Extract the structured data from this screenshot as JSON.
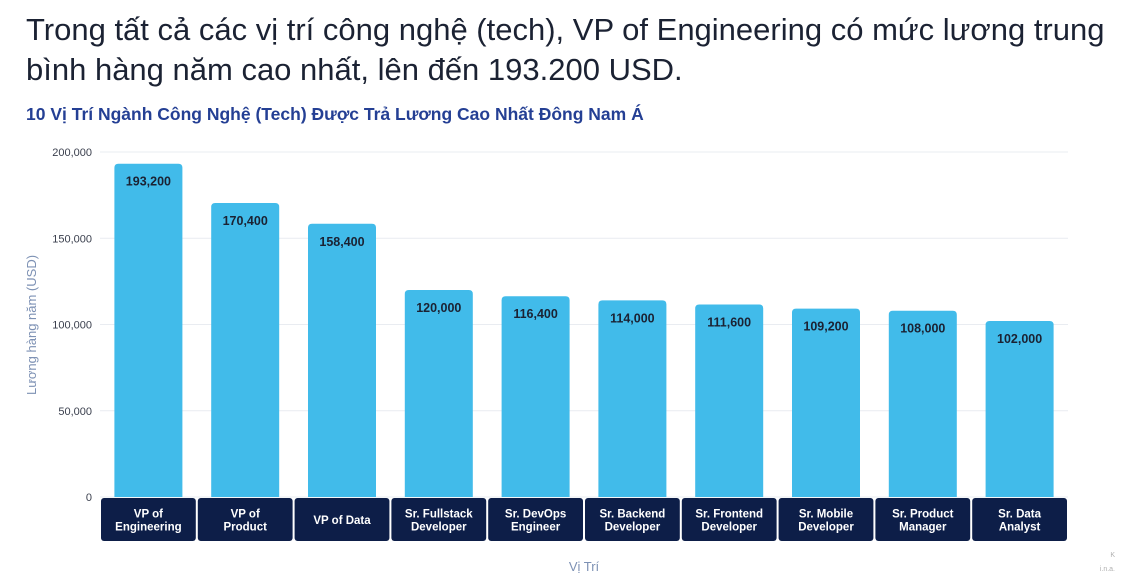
{
  "headline": "Trong tất cả các vị trí công nghệ (tech), VP of Engineering có mức lương trung bình hàng năm cao nhất, lên đến 193.200 USD.",
  "chart_data": {
    "type": "bar",
    "title": "10 Vị Trí Ngành Công Nghệ (Tech) Được Trả Lương Cao Nhất Đông Nam Á",
    "xlabel": "Vị Trí",
    "ylabel": "Lương hàng năm  (USD)",
    "ylim": [
      0,
      200000
    ],
    "yticks": [
      0,
      50000,
      100000,
      150000,
      200000
    ],
    "ytick_labels": [
      "0",
      "50,000",
      "100,000",
      "150,000",
      "200,000"
    ],
    "categories": [
      [
        "VP of",
        "Engineering"
      ],
      [
        "VP of",
        "Product"
      ],
      [
        "VP of Data"
      ],
      [
        "Sr. Fullstack",
        "Developer"
      ],
      [
        "Sr. DevOps",
        "Engineer"
      ],
      [
        "Sr. Backend",
        "Developer"
      ],
      [
        "Sr. Frontend",
        "Developer"
      ],
      [
        "Sr. Mobile",
        "Developer"
      ],
      [
        "Sr. Product",
        "Manager"
      ],
      [
        "Sr. Data",
        "Analyst"
      ]
    ],
    "values": [
      193200,
      170400,
      158400,
      120000,
      116400,
      114000,
      111600,
      109200,
      108000,
      102000
    ],
    "value_labels": [
      "193,200",
      "170,400",
      "158,400",
      "120,000",
      "116,400",
      "114,000",
      "111,600",
      "109,200",
      "108,000",
      "102,000"
    ],
    "grid": true,
    "colors": {
      "bar": "#41bbea",
      "category_box": "#0d1e48",
      "title": "#243f94",
      "axis_title": "#7d91b4"
    }
  },
  "corner_marks": [
    "K",
    "i.n.a."
  ]
}
